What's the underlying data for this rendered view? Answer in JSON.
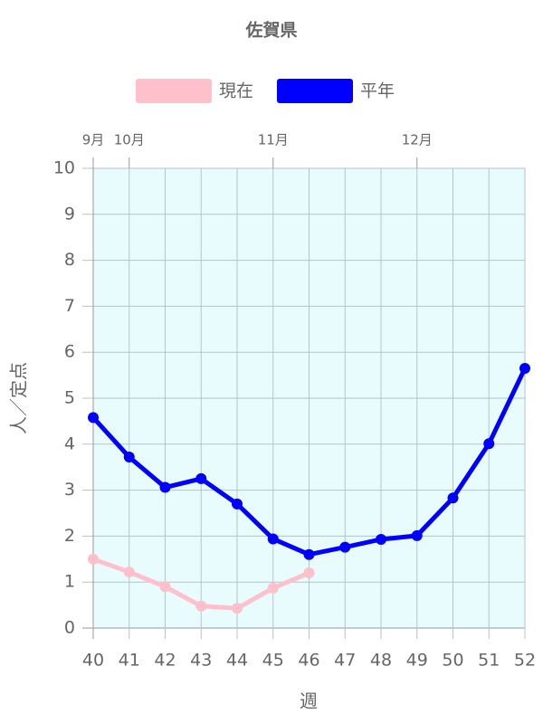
{
  "chart_data": {
    "type": "line",
    "title": "佐賀県",
    "x": [
      40,
      41,
      42,
      43,
      44,
      45,
      46,
      47,
      48,
      49,
      50,
      51,
      52
    ],
    "xlim": [
      40,
      52
    ],
    "xticks": [
      40,
      41,
      42,
      43,
      44,
      45,
      46,
      47,
      48,
      49,
      50,
      51,
      52
    ],
    "top_ticks": [
      {
        "value": 40,
        "label": "9月"
      },
      {
        "value": 41,
        "label": "10月"
      },
      {
        "value": 45,
        "label": "11月"
      },
      {
        "value": 49,
        "label": "12月"
      }
    ],
    "ylim": [
      0,
      10
    ],
    "yticks": [
      0,
      1,
      2,
      3,
      4,
      5,
      6,
      7,
      8,
      9,
      10
    ],
    "x_label": "週",
    "y_label": "人／定点",
    "grid": true,
    "series": [
      {
        "name": "現在",
        "color": "#ffc0cb",
        "values": [
          1.5,
          1.22,
          0.9,
          0.48,
          0.43,
          0.87,
          1.2,
          null,
          null,
          null,
          null,
          null,
          null
        ]
      },
      {
        "name": "平年",
        "color": "#0000ff",
        "values": [
          4.58,
          3.72,
          3.06,
          3.25,
          2.7,
          1.94,
          1.6,
          1.76,
          1.93,
          2.01,
          2.83,
          4.01,
          5.65
        ]
      }
    ]
  }
}
